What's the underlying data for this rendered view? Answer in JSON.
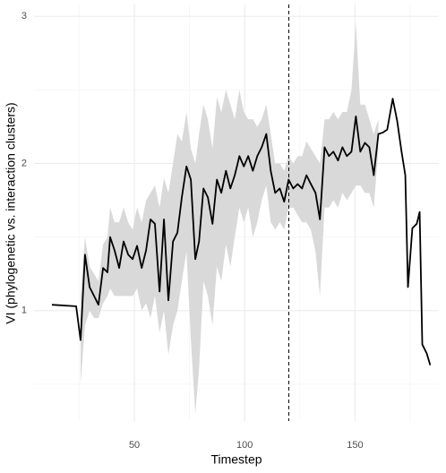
{
  "chart_data": {
    "type": "line",
    "xlabel": "Timestep",
    "ylabel": "VI (phylogenetic vs. interaction clusters)",
    "x": [
      12.6,
      23.6,
      25.6,
      27.6,
      29.7,
      31.7,
      33.7,
      35.8,
      37.8,
      39,
      41,
      43.1,
      45.1,
      47.2,
      49.2,
      51.2,
      53.3,
      55.3,
      57.3,
      59.3,
      61.4,
      63.4,
      65.4,
      67.5,
      69.5,
      71.5,
      73.6,
      75.6,
      77.6,
      79.3,
      81.3,
      83.3,
      85.4,
      87.4,
      89.4,
      91.5,
      93.5,
      95.5,
      97.6,
      99.6,
      101.6,
      103.7,
      105.7,
      107.7,
      109.8,
      111.8,
      113.8,
      115.9,
      117.9,
      119.9,
      122,
      124,
      126,
      128,
      130,
      132.1,
      134.1,
      136.2,
      138.2,
      140.2,
      142.3,
      144.3,
      146.3,
      148.4,
      150.4,
      152.4,
      154.5,
      156.5,
      158.5,
      160.6,
      162.6,
      164.6,
      167.1,
      169.1,
      171.1,
      172.8,
      174,
      176,
      178,
      179.3,
      180.5,
      182.5,
      184.1
    ],
    "series": [
      {
        "color": "#000000",
        "values": [
          1.04,
          1.03,
          0.8,
          1.38,
          1.16,
          1.1,
          1.04,
          1.29,
          1.26,
          1.5,
          1.41,
          1.29,
          1.47,
          1.38,
          1.35,
          1.44,
          1.29,
          1.41,
          1.62,
          1.59,
          1.13,
          1.62,
          1.07,
          1.47,
          1.53,
          1.77,
          1.98,
          1.89,
          1.35,
          1.47,
          1.83,
          1.77,
          1.59,
          1.89,
          1.8,
          1.95,
          1.83,
          1.92,
          2.05,
          1.98,
          2.05,
          1.95,
          2.05,
          2.11,
          2.2,
          1.95,
          1.8,
          1.83,
          1.74,
          1.89,
          1.83,
          1.86,
          1.83,
          1.92,
          1.86,
          1.8,
          1.62,
          2.11,
          2.05,
          2.08,
          2.02,
          2.11,
          2.05,
          2.08,
          2.32,
          2.08,
          2.14,
          2.11,
          1.92,
          2.2,
          2.21,
          2.23,
          2.44,
          2.29,
          2.08,
          1.92,
          1.16,
          1.56,
          1.59,
          1.67,
          0.77,
          0.71,
          0.63
        ],
        "lower": [
          null,
          null,
          0.5,
          0.9,
          1.0,
          0.95,
          0.95,
          1.05,
          1.1,
          1.15,
          1.1,
          1.1,
          1.1,
          1.1,
          1.1,
          1.15,
          1.0,
          1.05,
          0.95,
          1.1,
          0.85,
          1.0,
          0.7,
          0.9,
          1.0,
          1.2,
          1.4,
          0.8,
          0.3,
          0.6,
          1.2,
          1.1,
          0.9,
          1.3,
          1.2,
          1.45,
          1.3,
          1.5,
          1.7,
          1.6,
          1.7,
          1.5,
          1.6,
          1.75,
          1.85,
          1.6,
          1.55,
          1.6,
          1.55,
          1.7,
          1.7,
          1.65,
          1.6,
          1.6,
          1.55,
          1.4,
          1.1,
          1.7,
          1.7,
          1.75,
          1.7,
          1.8,
          1.75,
          1.8,
          1.85,
          1.85,
          1.8,
          1.8,
          1.7,
          2.1,
          null,
          null,
          null,
          null,
          null,
          null,
          null,
          null,
          null,
          null,
          null,
          null,
          null
        ],
        "upper": [
          null,
          null,
          1.1,
          1.5,
          1.3,
          1.25,
          1.2,
          1.45,
          1.5,
          1.7,
          1.6,
          1.6,
          1.7,
          1.6,
          1.55,
          1.7,
          1.6,
          1.75,
          1.8,
          1.85,
          1.7,
          1.9,
          1.8,
          2.0,
          2.2,
          2.15,
          2.35,
          2.1,
          2.0,
          2.2,
          2.4,
          2.3,
          2.1,
          2.45,
          2.35,
          2.5,
          2.4,
          2.3,
          2.5,
          2.35,
          2.3,
          2.3,
          2.25,
          2.3,
          2.4,
          2.2,
          2.0,
          2.0,
          1.95,
          2.05,
          2.0,
          2.05,
          2.05,
          2.15,
          2.1,
          2.05,
          2.0,
          2.3,
          2.3,
          2.35,
          2.3,
          2.35,
          2.35,
          2.5,
          2.95,
          2.4,
          2.4,
          2.3,
          2.2,
          2.3,
          null,
          null,
          null,
          null,
          null,
          null,
          null,
          null,
          null,
          null,
          null,
          null,
          null
        ],
        "band_color": "#d9d9d9"
      }
    ],
    "vline": 120,
    "xlim": [
      4.5,
      188
    ],
    "xticks": [
      50,
      100,
      150
    ],
    "xminor": [
      25,
      75,
      125,
      175
    ],
    "ylim": [
      0.25,
      3.08
    ],
    "yticks": [
      1,
      2,
      3
    ],
    "yminor": [
      0.5,
      1.5,
      2.5
    ],
    "grid": true
  }
}
